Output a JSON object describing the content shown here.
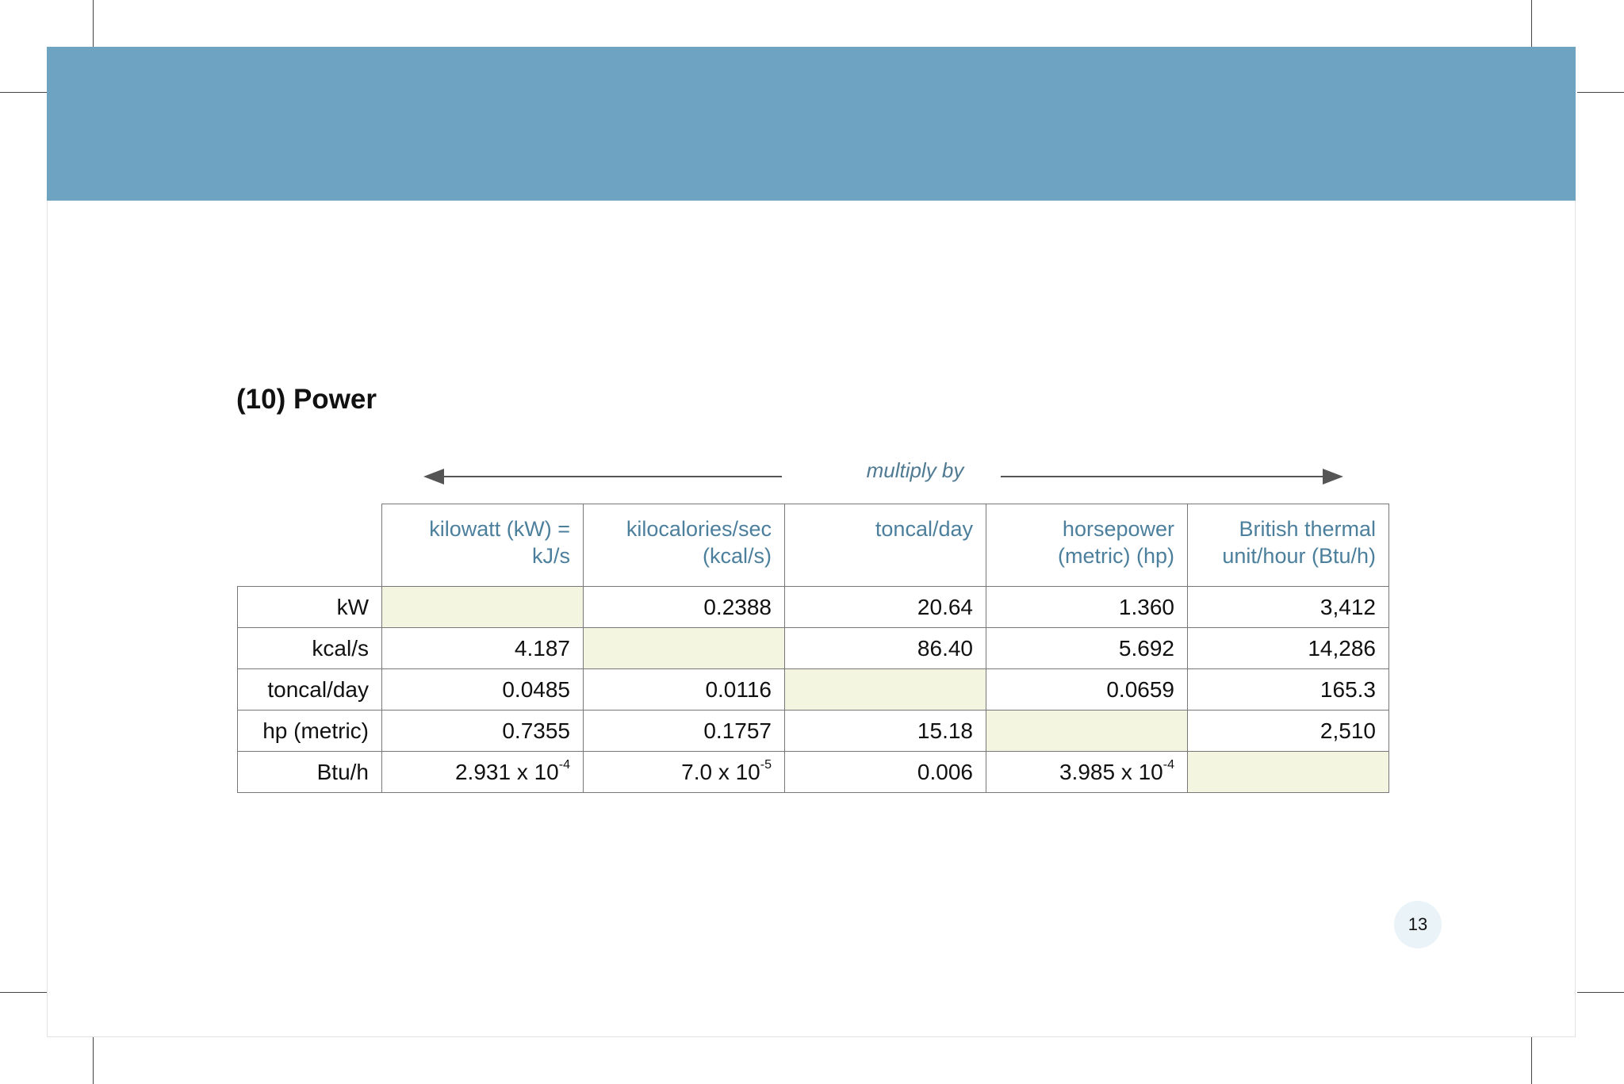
{
  "section_title": "(10) Power",
  "arrow_label": "multiply by",
  "columns": [
    {
      "line1": "kilowatt (kW) =",
      "line2": "kJ/s"
    },
    {
      "line1": "kilocalories/sec",
      "line2": "(kcal/s)"
    },
    {
      "line1": "toncal/day",
      "line2": ""
    },
    {
      "line1": "horsepower",
      "line2": "(metric) (hp)"
    },
    {
      "line1": "British thermal",
      "line2": "unit/hour (Btu/h)"
    }
  ],
  "rows": [
    {
      "label": "kW",
      "values": [
        {
          "base": "",
          "exp": ""
        },
        {
          "base": "0.2388",
          "exp": ""
        },
        {
          "base": "20.64",
          "exp": ""
        },
        {
          "base": "1.360",
          "exp": ""
        },
        {
          "base": "3,412",
          "exp": ""
        }
      ]
    },
    {
      "label": "kcal/s",
      "values": [
        {
          "base": "4.187",
          "exp": ""
        },
        {
          "base": "",
          "exp": ""
        },
        {
          "base": "86.40",
          "exp": ""
        },
        {
          "base": "5.692",
          "exp": ""
        },
        {
          "base": "14,286",
          "exp": ""
        }
      ]
    },
    {
      "label": "toncal/day",
      "values": [
        {
          "base": "0.0485",
          "exp": ""
        },
        {
          "base": "0.0116",
          "exp": ""
        },
        {
          "base": "",
          "exp": ""
        },
        {
          "base": "0.0659",
          "exp": ""
        },
        {
          "base": "165.3",
          "exp": ""
        }
      ]
    },
    {
      "label": "hp (metric)",
      "values": [
        {
          "base": "0.7355",
          "exp": ""
        },
        {
          "base": "0.1757",
          "exp": ""
        },
        {
          "base": "15.18",
          "exp": ""
        },
        {
          "base": "",
          "exp": ""
        },
        {
          "base": "2,510",
          "exp": ""
        }
      ]
    },
    {
      "label": "Btu/h",
      "values": [
        {
          "base": "2.931 x 10",
          "exp": "-4"
        },
        {
          "base": "7.0 x 10",
          "exp": "-5"
        },
        {
          "base": "0.006",
          "exp": ""
        },
        {
          "base": "3.985 x 10",
          "exp": "-4"
        },
        {
          "base": "",
          "exp": ""
        }
      ]
    }
  ],
  "page_number": "13",
  "colors": {
    "banner": "#6ea4c2",
    "header_text": "#4b7f9c",
    "diagonal_fill": "#f4f5e0"
  }
}
